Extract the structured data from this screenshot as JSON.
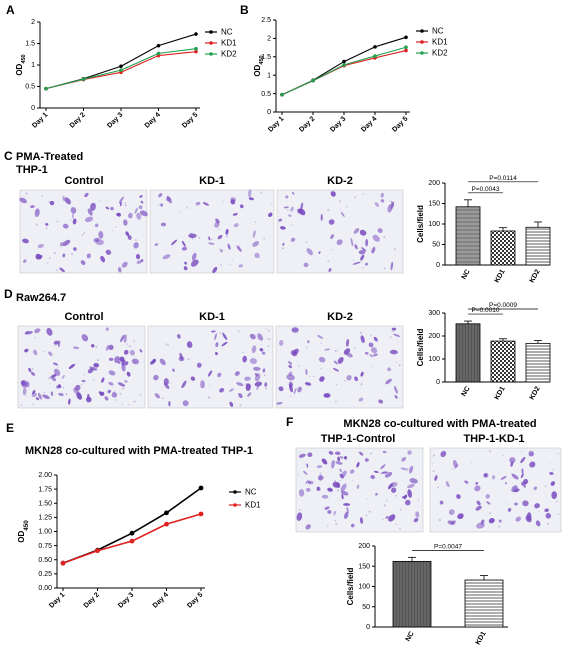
{
  "panels": {
    "A": "A",
    "B": "B",
    "C": "C",
    "D": "D",
    "E": "E",
    "F": "F"
  },
  "colors": {
    "NC": "#000000",
    "KD1": "#e02020",
    "KD2": "#22a050",
    "cells": "#7a4cc0"
  },
  "headers": {
    "C_title_1": "PMA-Treated",
    "C_title_2": "THP-1",
    "C_control": "Control",
    "C_kd1": "KD-1",
    "C_kd2": "KD-2",
    "D_title": "Raw264.7",
    "D_control": "Control",
    "D_kd1": "KD-1",
    "D_kd2": "KD-2",
    "F_title": "MKN28 co-cultured with PMA-treated",
    "F_control": "THP-1-Control",
    "F_kd1": "THP-1-KD-1"
  },
  "chart_data": [
    {
      "id": "A",
      "type": "line",
      "x": [
        "Day 1",
        "Day 2",
        "Day 3",
        "Day 4",
        "Day 5"
      ],
      "ylabel": "OD450",
      "ylim": [
        0,
        2.0
      ],
      "yticks": [
        0,
        0.5,
        1.0,
        1.5,
        2.0
      ],
      "yticklabels": [
        "0",
        "0.5",
        "1",
        "1.5",
        "2"
      ],
      "legend": "top-right",
      "series": [
        {
          "name": "NC",
          "values": [
            0.45,
            0.68,
            0.97,
            1.45,
            1.72
          ]
        },
        {
          "name": "KD1",
          "values": [
            0.45,
            0.66,
            0.83,
            1.22,
            1.31
          ]
        },
        {
          "name": "KD2",
          "values": [
            0.45,
            0.67,
            0.88,
            1.27,
            1.38
          ]
        }
      ]
    },
    {
      "id": "B",
      "type": "line",
      "x": [
        "Day 1",
        "Day 2",
        "Day 3",
        "Day 4",
        "Day 5"
      ],
      "ylabel": "OD450",
      "ylim": [
        0,
        2.5
      ],
      "yticks": [
        0,
        0.5,
        1.0,
        1.5,
        2.0,
        2.5
      ],
      "yticklabels": [
        "0",
        "0.5",
        "1",
        "1.5",
        "2",
        "2.5"
      ],
      "legend": "top-right",
      "series": [
        {
          "name": "NC",
          "values": [
            0.47,
            0.86,
            1.37,
            1.77,
            2.03
          ]
        },
        {
          "name": "KD1",
          "values": [
            0.47,
            0.85,
            1.26,
            1.47,
            1.67
          ]
        },
        {
          "name": "KD2",
          "values": [
            0.47,
            0.85,
            1.28,
            1.52,
            1.76
          ]
        }
      ]
    },
    {
      "id": "C",
      "type": "bar",
      "categories": [
        "NC",
        "KD1",
        "KD2"
      ],
      "values": [
        142,
        83,
        92
      ],
      "errors": [
        17,
        8,
        13
      ],
      "ylabel": "Cells/field",
      "ylim": [
        0,
        200
      ],
      "yticks": [
        0,
        50,
        100,
        150,
        200
      ],
      "comparisons": [
        {
          "from": 0,
          "to": 1,
          "label": "P=0.0043"
        },
        {
          "from": 0,
          "to": 2,
          "label": "P=0.0114"
        }
      ]
    },
    {
      "id": "D",
      "type": "bar",
      "categories": [
        "NC",
        "KD1",
        "KD2"
      ],
      "values": [
        253,
        178,
        168
      ],
      "errors": [
        12,
        10,
        12
      ],
      "ylabel": "Cells/field",
      "ylim": [
        0,
        300
      ],
      "yticks": [
        0,
        100,
        200,
        300
      ],
      "comparisons": [
        {
          "from": 0,
          "to": 1,
          "label": "P=0.0010"
        },
        {
          "from": 0,
          "to": 2,
          "label": "P=0.0009"
        }
      ]
    },
    {
      "id": "E",
      "type": "line",
      "title": "MKN28 co-cultured with PMA-treated THP-1",
      "x": [
        "Day 1",
        "Day 2",
        "Day 3",
        "Day 4",
        "Day 5"
      ],
      "ylabel": "OD450",
      "ylim": [
        0,
        2.0
      ],
      "yticks": [
        0,
        0.25,
        0.5,
        0.75,
        1.0,
        1.25,
        1.5,
        1.75,
        2.0
      ],
      "yticklabels": [
        "0.00",
        "0.25",
        "0.50",
        "0.75",
        "1.00",
        "1.25",
        "1.50",
        "1.75",
        "2.00"
      ],
      "legend": "top-right",
      "series": [
        {
          "name": "NC",
          "values": [
            0.44,
            0.67,
            0.97,
            1.33,
            1.77
          ]
        },
        {
          "name": "KD1",
          "values": [
            0.44,
            0.66,
            0.83,
            1.13,
            1.31
          ]
        }
      ]
    },
    {
      "id": "F",
      "type": "bar",
      "categories": [
        "NC",
        "KD1"
      ],
      "values": [
        162,
        116
      ],
      "errors": [
        10,
        11
      ],
      "ylabel": "Cells/field",
      "ylim": [
        0,
        200
      ],
      "yticks": [
        0,
        50,
        100,
        150,
        200
      ],
      "comparisons": [
        {
          "from": 0,
          "to": 1,
          "label": "P=0.0047"
        }
      ]
    }
  ]
}
